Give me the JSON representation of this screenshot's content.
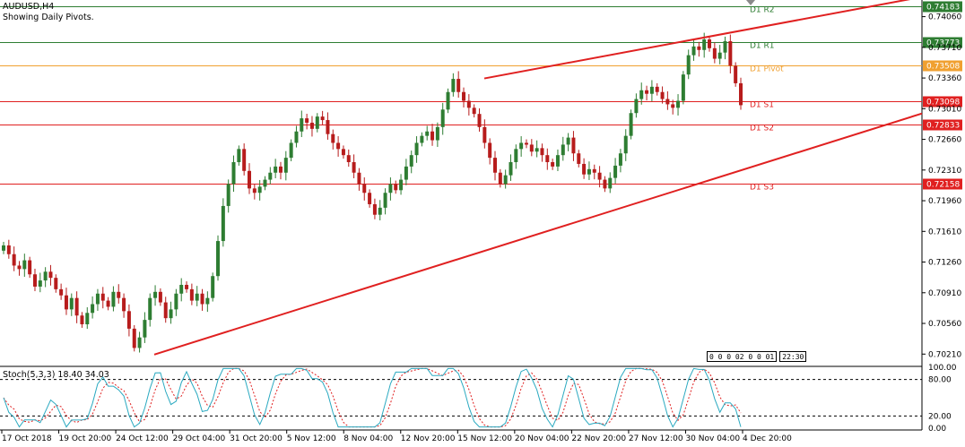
{
  "header": {
    "symbol": "AUDUSD,H4",
    "indicator_note": "Showing Daily Pivots."
  },
  "stoch": {
    "label": "Stoch(5,3,3) 18.40 34.03"
  },
  "pivots": [
    {
      "name": "D1 R2",
      "value": 0.74183,
      "price_label": "0.74183",
      "color": "#2e7d32"
    },
    {
      "name": "D1 R1",
      "value": 0.73773,
      "price_label": "0.73773",
      "color": "#2e7d32"
    },
    {
      "name": "D1 Pivot",
      "value": 0.73508,
      "price_label": "0.73508",
      "color": "#f0a030"
    },
    {
      "name": "D1 S1",
      "value": 0.73098,
      "price_label": "0.73098",
      "color": "#e02020"
    },
    {
      "name": "D1 S2",
      "value": 0.72833,
      "price_label": "0.72833",
      "color": "#e02020"
    },
    {
      "name": "D1 S3",
      "value": 0.72158,
      "price_label": "0.72158",
      "color": "#e02020"
    }
  ],
  "price_axis": {
    "ticks": [
      "0.74060",
      "0.73710",
      "0.73360",
      "0.73010",
      "0.72660",
      "0.72310",
      "0.71960",
      "0.71610",
      "0.71260",
      "0.70910",
      "0.70560",
      "0.70210"
    ]
  },
  "stoch_axis": {
    "ticks": [
      "100.00",
      "80.00",
      "20.00",
      "0.00"
    ]
  },
  "time_axis": {
    "labels": [
      "17 Oct 2018",
      "19 Oct 20:00",
      "24 Oct 12:00",
      "29 Oct 04:00",
      "31 Oct 20:00",
      "5 Nov 12:00",
      "8 Nov 04:00",
      "12 Nov 20:00",
      "15 Nov 12:00",
      "20 Nov 04:00",
      "22 Nov 20:00",
      "27 Nov 12:00",
      "30 Nov 04:00",
      "4 Dec 20:00"
    ]
  },
  "time_box": {
    "date_text": "0 0 0 02 0 0 01",
    "clock": "22:30"
  },
  "colors": {
    "bull": "#2e7d32",
    "bear": "#b71c1c",
    "trendline": "#e02020",
    "stoch_main": "#2aa9c0",
    "stoch_signal": "#e02020"
  },
  "chart_data": {
    "type": "candlestick",
    "title": "AUDUSD,H4",
    "ylim": [
      0.7008,
      0.7425
    ],
    "pivot_levels": {
      "R2": 0.74183,
      "R1": 0.73773,
      "Pivot": 0.73508,
      "S1": 0.73098,
      "S2": 0.72833,
      "S3": 0.72158
    },
    "trendlines": [
      {
        "name": "lower",
        "from": {
          "x": "24 Oct 12:00",
          "y": 0.702
        },
        "to": {
          "x": "4 Dec 20:00",
          "y": 0.7295
        }
      },
      {
        "name": "upper",
        "from": {
          "x": "15 Nov 12:00",
          "y": 0.7336
        },
        "to": {
          "x": "4 Dec 20:00",
          "y": 0.743
        }
      }
    ],
    "price_path": [
      0.7145,
      0.7135,
      0.7122,
      0.7118,
      0.7128,
      0.7112,
      0.7098,
      0.7105,
      0.7115,
      0.7108,
      0.7095,
      0.7088,
      0.7072,
      0.7085,
      0.7065,
      0.7055,
      0.7068,
      0.7078,
      0.709,
      0.7082,
      0.7075,
      0.7092,
      0.7085,
      0.707,
      0.705,
      0.7028,
      0.704,
      0.706,
      0.7085,
      0.7092,
      0.708,
      0.7062,
      0.7072,
      0.709,
      0.71,
      0.7095,
      0.7082,
      0.709,
      0.7078,
      0.7085,
      0.711,
      0.715,
      0.719,
      0.7215,
      0.724,
      0.7255,
      0.723,
      0.721,
      0.7205,
      0.7212,
      0.722,
      0.7228,
      0.7235,
      0.7228,
      0.7245,
      0.7262,
      0.7275,
      0.729,
      0.7285,
      0.7278,
      0.7292,
      0.7288,
      0.7272,
      0.7262,
      0.7255,
      0.7248,
      0.724,
      0.7228,
      0.7215,
      0.7205,
      0.7192,
      0.718,
      0.7188,
      0.7205,
      0.7215,
      0.7208,
      0.722,
      0.7235,
      0.7248,
      0.7262,
      0.727,
      0.7275,
      0.7265,
      0.728,
      0.73,
      0.732,
      0.7335,
      0.732,
      0.731,
      0.7302,
      0.7295,
      0.728,
      0.7262,
      0.7245,
      0.7228,
      0.7215,
      0.7225,
      0.724,
      0.7255,
      0.7262,
      0.726,
      0.7252,
      0.7256,
      0.7248,
      0.724,
      0.7235,
      0.7248,
      0.726,
      0.7268,
      0.725,
      0.7238,
      0.7226,
      0.7232,
      0.7228,
      0.722,
      0.721,
      0.7222,
      0.7236,
      0.725,
      0.727,
      0.7296,
      0.7312,
      0.7322,
      0.7318,
      0.7326,
      0.732,
      0.7312,
      0.7306,
      0.7302,
      0.731,
      0.734,
      0.7362,
      0.7372,
      0.7368,
      0.738,
      0.737,
      0.7358,
      0.7365,
      0.7378,
      0.735,
      0.733,
      0.7305
    ]
  }
}
